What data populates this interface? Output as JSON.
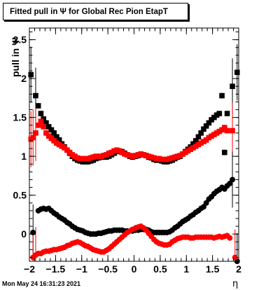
{
  "chart_data": {
    "type": "scatter",
    "title": "Fitted pull in  Ψ  for Global Rec Pion EtapT",
    "xlabel": "η",
    "ylabel": "pull in  Ψ",
    "xlim": [
      -2.0,
      2.0
    ],
    "ylim": [
      -0.35,
      2.65
    ],
    "x_ticks": [
      "−2",
      "−1.5",
      "−1",
      "−0.5",
      "0",
      "0.5",
      "1",
      "1.5",
      "2"
    ],
    "y_ticks": [
      "0",
      "0.5",
      "1",
      "1.5",
      "2",
      "2.5"
    ],
    "grid": false,
    "series": [
      {
        "color": "#000000",
        "role": "sigma",
        "x": [
          -1.97,
          -1.88,
          -1.83,
          -1.78,
          -1.73,
          -1.68,
          -1.63,
          -1.58,
          -1.53,
          -1.48,
          -1.43,
          -1.38,
          -1.33,
          -1.28,
          -1.23,
          -1.18,
          -1.13,
          -1.08,
          -1.03,
          -0.98,
          -0.93,
          -0.88,
          -0.83,
          -0.78,
          -0.73,
          -0.68,
          -0.63,
          -0.58,
          -0.53,
          -0.48,
          -0.43,
          -0.38,
          -0.33,
          -0.28,
          -0.23,
          -0.18,
          -0.13,
          -0.08,
          -0.03,
          0.03,
          0.08,
          0.13,
          0.18,
          0.23,
          0.28,
          0.33,
          0.38,
          0.43,
          0.48,
          0.53,
          0.58,
          0.63,
          0.68,
          0.73,
          0.78,
          0.83,
          0.88,
          0.93,
          0.98,
          1.03,
          1.08,
          1.13,
          1.18,
          1.23,
          1.28,
          1.33,
          1.38,
          1.43,
          1.48,
          1.53,
          1.58,
          1.63,
          1.68,
          1.73,
          1.78,
          1.88,
          1.97
        ],
        "y": [
          2.05,
          1.78,
          1.65,
          1.55,
          1.48,
          1.43,
          1.38,
          1.34,
          1.3,
          1.25,
          1.21,
          1.16,
          1.12,
          1.08,
          1.04,
          1.0,
          0.97,
          0.95,
          0.94,
          0.93,
          0.93,
          0.93,
          0.94,
          0.95,
          0.97,
          0.98,
          0.99,
          0.99,
          0.99,
          1.0,
          1.02,
          1.04,
          1.06,
          1.07,
          1.06,
          1.04,
          1.02,
          1.0,
          0.99,
          1.0,
          1.01,
          1.02,
          1.02,
          1.01,
          0.99,
          0.98,
          0.96,
          0.95,
          0.95,
          0.94,
          0.93,
          0.93,
          0.94,
          0.95,
          0.97,
          0.99,
          1.0,
          1.03,
          1.06,
          1.09,
          1.12,
          1.16,
          1.2,
          1.25,
          1.3,
          1.35,
          1.39,
          1.43,
          1.47,
          1.5,
          1.53,
          1.55,
          1.78,
          1.05,
          1.55,
          1.9,
          2.08
        ]
      },
      {
        "color": "#ff0000",
        "role": "sigma",
        "x": [
          -1.97,
          -1.93,
          -1.88,
          -1.83,
          -1.78,
          -1.73,
          -1.68,
          -1.63,
          -1.58,
          -1.53,
          -1.48,
          -1.43,
          -1.38,
          -1.33,
          -1.28,
          -1.23,
          -1.18,
          -1.13,
          -1.08,
          -1.03,
          -0.98,
          -0.93,
          -0.88,
          -0.83,
          -0.78,
          -0.73,
          -0.68,
          -0.63,
          -0.58,
          -0.53,
          -0.48,
          -0.43,
          -0.38,
          -0.33,
          -0.28,
          -0.23,
          -0.18,
          -0.13,
          -0.08,
          -0.03,
          0.03,
          0.08,
          0.13,
          0.18,
          0.23,
          0.28,
          0.33,
          0.38,
          0.43,
          0.48,
          0.53,
          0.58,
          0.63,
          0.68,
          0.73,
          0.78,
          0.83,
          0.88,
          0.93,
          0.98,
          1.03,
          1.08,
          1.13,
          1.18,
          1.23,
          1.28,
          1.33,
          1.38,
          1.43,
          1.48,
          1.53,
          1.58,
          1.63,
          1.68,
          1.73,
          1.78,
          1.88
        ],
        "y": [
          1.22,
          1.24,
          1.3,
          1.4,
          1.45,
          1.38,
          1.3,
          1.26,
          1.23,
          1.2,
          1.17,
          1.15,
          1.13,
          1.11,
          1.08,
          1.05,
          1.02,
          1.0,
          0.98,
          0.97,
          0.97,
          0.97,
          0.97,
          0.98,
          0.99,
          1.0,
          1.0,
          1.0,
          1.01,
          1.02,
          1.04,
          1.05,
          1.07,
          1.08,
          1.07,
          1.05,
          1.03,
          1.02,
          1.01,
          1.0,
          1.01,
          1.02,
          1.03,
          1.02,
          1.01,
          1.0,
          0.99,
          0.98,
          0.97,
          0.97,
          0.96,
          0.96,
          0.96,
          0.97,
          0.98,
          0.99,
          1.0,
          1.01,
          1.03,
          1.05,
          1.07,
          1.09,
          1.11,
          1.13,
          1.15,
          1.17,
          1.19,
          1.21,
          1.24,
          1.26,
          1.28,
          1.3,
          1.32,
          1.34,
          1.37,
          1.33,
          1.33
        ]
      },
      {
        "color": "#000000",
        "role": "mean",
        "x": [
          -1.93,
          -1.83,
          -1.78,
          -1.73,
          -1.68,
          -1.63,
          -1.58,
          -1.53,
          -1.48,
          -1.43,
          -1.38,
          -1.33,
          -1.28,
          -1.23,
          -1.18,
          -1.13,
          -1.08,
          -1.03,
          -0.98,
          -0.93,
          -0.88,
          -0.83,
          -0.78,
          -0.73,
          -0.68,
          -0.63,
          -0.58,
          -0.53,
          -0.48,
          -0.43,
          -0.38,
          -0.33,
          -0.28,
          -0.23,
          -0.18,
          -0.13,
          -0.08,
          -0.03,
          0.03,
          0.08,
          0.13,
          0.18,
          0.23,
          0.28,
          0.33,
          0.38,
          0.43,
          0.48,
          0.53,
          0.58,
          0.63,
          0.68,
          0.73,
          0.78,
          0.83,
          0.88,
          0.93,
          0.98,
          1.03,
          1.08,
          1.13,
          1.18,
          1.23,
          1.28,
          1.33,
          1.38,
          1.43,
          1.48,
          1.53,
          1.58,
          1.63,
          1.68,
          1.73,
          1.78,
          1.83,
          1.88,
          1.97
        ],
        "y": [
          0.02,
          0.3,
          0.32,
          0.33,
          0.32,
          0.33,
          0.3,
          0.27,
          0.25,
          0.22,
          0.2,
          0.18,
          0.15,
          0.13,
          0.1,
          0.08,
          0.06,
          0.05,
          0.04,
          0.02,
          0.01,
          0.0,
          0.0,
          0.0,
          0.01,
          0.01,
          0.02,
          0.03,
          0.04,
          0.04,
          0.05,
          0.05,
          0.05,
          0.05,
          0.04,
          0.04,
          0.04,
          0.04,
          0.05,
          0.05,
          0.06,
          0.06,
          0.06,
          0.05,
          0.03,
          0.02,
          0.02,
          0.02,
          0.02,
          0.02,
          0.02,
          0.03,
          0.05,
          0.08,
          0.1,
          0.13,
          0.16,
          0.18,
          0.2,
          0.23,
          0.25,
          0.28,
          0.3,
          0.33,
          0.35,
          0.4,
          0.45,
          0.48,
          0.52,
          0.55,
          0.57,
          0.6,
          0.58,
          0.62,
          0.65,
          0.7,
          -0.35
        ]
      },
      {
        "color": "#ff0000",
        "role": "mean",
        "x": [
          -1.93,
          -1.88,
          -1.83,
          -1.78,
          -1.73,
          -1.68,
          -1.63,
          -1.58,
          -1.53,
          -1.48,
          -1.43,
          -1.38,
          -1.33,
          -1.28,
          -1.23,
          -1.18,
          -1.13,
          -1.08,
          -1.03,
          -0.98,
          -0.93,
          -0.88,
          -0.83,
          -0.78,
          -0.73,
          -0.68,
          -0.63,
          -0.58,
          -0.53,
          -0.48,
          -0.43,
          -0.38,
          -0.33,
          -0.28,
          -0.23,
          -0.18,
          -0.13,
          -0.08,
          -0.03,
          0.03,
          0.08,
          0.13,
          0.18,
          0.23,
          0.28,
          0.33,
          0.38,
          0.43,
          0.48,
          0.53,
          0.58,
          0.63,
          0.68,
          0.73,
          0.78,
          0.83,
          0.88,
          0.93,
          0.98,
          1.03,
          1.08,
          1.13,
          1.18,
          1.23,
          1.28,
          1.33,
          1.38,
          1.43,
          1.48,
          1.53,
          1.58,
          1.63,
          1.68,
          1.73,
          1.78,
          1.83,
          1.93
        ],
        "y": [
          -0.3,
          -0.27,
          -0.25,
          -0.25,
          -0.23,
          -0.22,
          -0.22,
          -0.21,
          -0.2,
          -0.2,
          -0.19,
          -0.18,
          -0.17,
          -0.15,
          -0.14,
          -0.12,
          -0.11,
          -0.1,
          -0.11,
          -0.13,
          -0.15,
          -0.16,
          -0.18,
          -0.2,
          -0.21,
          -0.22,
          -0.23,
          -0.23,
          -0.21,
          -0.19,
          -0.16,
          -0.13,
          -0.1,
          -0.07,
          -0.04,
          -0.01,
          0.02,
          0.04,
          0.06,
          0.08,
          0.09,
          0.1,
          0.08,
          0.05,
          0.01,
          -0.03,
          -0.07,
          -0.1,
          -0.12,
          -0.13,
          -0.14,
          -0.14,
          -0.13,
          -0.1,
          -0.08,
          -0.06,
          -0.05,
          -0.04,
          -0.04,
          -0.04,
          -0.05,
          -0.05,
          -0.04,
          -0.04,
          -0.04,
          -0.04,
          -0.04,
          -0.04,
          -0.04,
          -0.05,
          -0.04,
          -0.03,
          -0.04,
          -0.03,
          -0.02,
          -0.05,
          -0.3
        ]
      }
    ]
  },
  "timestamp": "Mon May 24 16:31:23 2021"
}
